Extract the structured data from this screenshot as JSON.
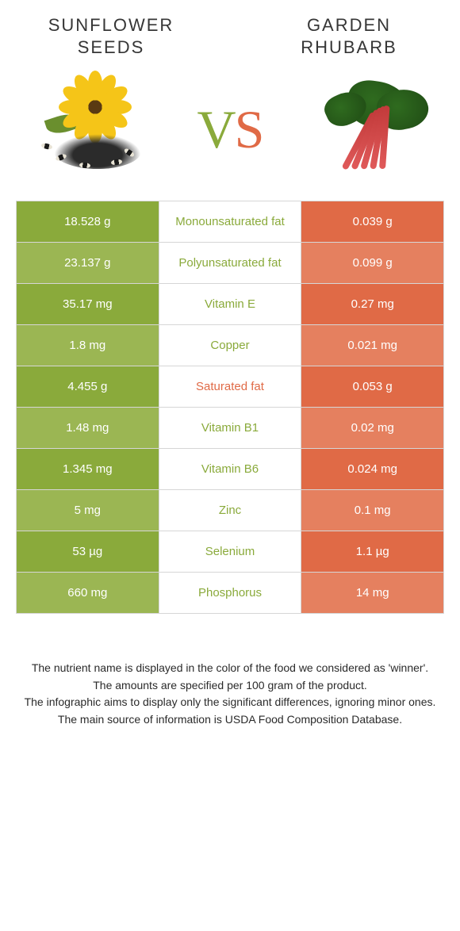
{
  "colors": {
    "left_primary": "#8aaa3b",
    "left_alt": "#9bb653",
    "right_primary": "#e06a46",
    "right_alt": "#e5805f",
    "border": "#d6d6d6",
    "text_dark": "#363636",
    "sat_label": "#e06a46",
    "nut_label": "#8aaa3b"
  },
  "header": {
    "left": "SUNFLOWER\nSEEDS",
    "right": "GARDEN\nRHUBARB"
  },
  "vs": {
    "v": "V",
    "s": "S"
  },
  "table": {
    "rows": [
      {
        "left": "18.528 g",
        "label": "Monounsaturated fat",
        "right": "0.039 g",
        "winner": "left"
      },
      {
        "left": "23.137 g",
        "label": "Polyunsaturated fat",
        "right": "0.099 g",
        "winner": "left"
      },
      {
        "left": "35.17 mg",
        "label": "Vitamin E",
        "right": "0.27 mg",
        "winner": "left"
      },
      {
        "left": "1.8 mg",
        "label": "Copper",
        "right": "0.021 mg",
        "winner": "left"
      },
      {
        "left": "4.455 g",
        "label": "Saturated fat",
        "right": "0.053 g",
        "winner": "right"
      },
      {
        "left": "1.48 mg",
        "label": "Vitamin B1",
        "right": "0.02 mg",
        "winner": "left"
      },
      {
        "left": "1.345 mg",
        "label": "Vitamin B6",
        "right": "0.024 mg",
        "winner": "left"
      },
      {
        "left": "5 mg",
        "label": "Zinc",
        "right": "0.1 mg",
        "winner": "left"
      },
      {
        "left": "53 µg",
        "label": "Selenium",
        "right": "1.1 µg",
        "winner": "left"
      },
      {
        "left": "660 mg",
        "label": "Phosphorus",
        "right": "14 mg",
        "winner": "left"
      }
    ]
  },
  "footnotes": [
    "The nutrient name is displayed in the color of the food we considered as 'winner'.",
    "The amounts are specified per 100 gram of the product.",
    "The infographic aims to display only the significant differences, ignoring minor ones.",
    "The main source of information is USDA Food Composition Database."
  ]
}
